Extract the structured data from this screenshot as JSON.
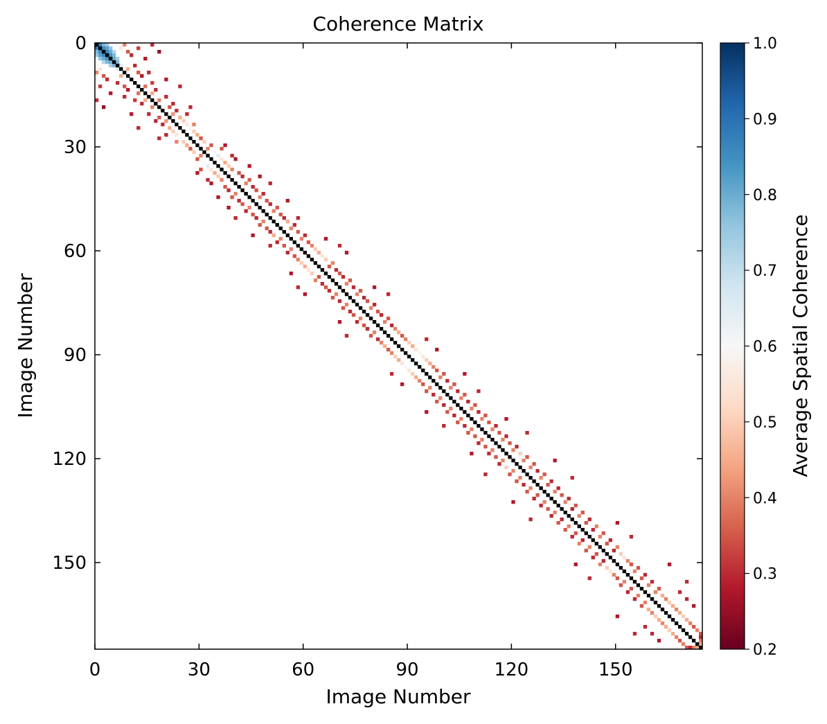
{
  "chart_data": {
    "type": "heatmap",
    "title": "Coherence Matrix",
    "xlabel": "Image Number",
    "ylabel": "Image Number",
    "n_images": 175,
    "xlim": [
      0,
      175
    ],
    "ylim": [
      175,
      0
    ],
    "x_ticks": [
      0,
      30,
      60,
      90,
      120,
      150
    ],
    "y_ticks": [
      0,
      30,
      60,
      90,
      120,
      150
    ],
    "colorbar": {
      "label": "Average Spatial Coherence",
      "range": [
        0.2,
        1.0
      ],
      "ticks": [
        0.2,
        0.3,
        0.4,
        0.5,
        0.6,
        0.7,
        0.8,
        0.9,
        1.0
      ],
      "tick_labels": [
        "0.2",
        "0.3",
        "0.4",
        "0.5",
        "0.6",
        "0.7",
        "0.8",
        "0.9",
        "1.0"
      ],
      "colormap": "RdBu",
      "low_color": "#67001f",
      "high_color": "#053061"
    },
    "diagonal": {
      "value": 1.0,
      "color": "#000000"
    },
    "background_color": "#ffffff",
    "symmetric": true,
    "cells": [
      [
        0,
        1,
        0.88
      ],
      [
        0,
        2,
        0.78
      ],
      [
        0,
        3,
        0.75
      ],
      [
        1,
        2,
        0.85
      ],
      [
        1,
        3,
        0.82
      ],
      [
        1,
        4,
        0.76
      ],
      [
        2,
        3,
        0.86
      ],
      [
        2,
        4,
        0.8
      ],
      [
        2,
        5,
        0.72
      ],
      [
        3,
        4,
        0.84
      ],
      [
        3,
        5,
        0.78
      ],
      [
        4,
        5,
        0.8
      ],
      [
        4,
        6,
        0.74
      ],
      [
        5,
        6,
        0.78
      ],
      [
        6,
        7,
        0.66
      ],
      [
        0,
        6,
        0.6
      ],
      [
        1,
        7,
        0.55
      ],
      [
        0,
        8,
        0.4
      ],
      [
        2,
        9,
        0.35
      ],
      [
        3,
        10,
        0.3
      ],
      [
        1,
        12,
        0.32
      ],
      [
        4,
        14,
        0.28
      ],
      [
        0,
        16,
        0.3
      ],
      [
        2,
        18,
        0.25
      ],
      [
        7,
        9,
        0.45
      ],
      [
        6,
        11,
        0.3
      ],
      [
        8,
        12,
        0.35
      ],
      [
        8,
        15,
        0.3
      ],
      [
        9,
        13,
        0.28
      ],
      [
        11,
        16,
        0.32
      ],
      [
        12,
        14,
        0.38
      ],
      [
        13,
        17,
        0.3
      ],
      [
        14,
        16,
        0.45
      ],
      [
        15,
        20,
        0.3
      ],
      [
        16,
        18,
        0.4
      ],
      [
        17,
        22,
        0.3
      ],
      [
        18,
        21,
        0.35
      ],
      [
        19,
        23,
        0.3
      ],
      [
        10,
        20,
        0.28
      ],
      [
        12,
        24,
        0.3
      ],
      [
        20,
        22,
        0.42
      ],
      [
        21,
        24,
        0.45
      ],
      [
        22,
        25,
        0.5
      ],
      [
        23,
        26,
        0.55
      ],
      [
        24,
        27,
        0.6
      ],
      [
        25,
        28,
        0.5
      ],
      [
        23,
        28,
        0.4
      ],
      [
        20,
        26,
        0.3
      ],
      [
        18,
        27,
        0.3
      ],
      [
        26,
        29,
        0.45
      ],
      [
        27,
        30,
        0.35
      ],
      [
        28,
        31,
        0.5
      ],
      [
        29,
        33,
        0.35
      ],
      [
        30,
        32,
        0.4
      ],
      [
        31,
        34,
        0.6
      ],
      [
        32,
        35,
        0.65
      ],
      [
        33,
        36,
        0.55
      ],
      [
        34,
        37,
        0.45
      ],
      [
        35,
        38,
        0.5
      ],
      [
        30,
        36,
        0.35
      ],
      [
        29,
        37,
        0.28
      ],
      [
        32,
        39,
        0.3
      ],
      [
        33,
        40,
        0.28
      ],
      [
        36,
        39,
        0.4
      ],
      [
        37,
        41,
        0.35
      ],
      [
        38,
        42,
        0.3
      ],
      [
        39,
        44,
        0.35
      ],
      [
        40,
        43,
        0.4
      ],
      [
        41,
        45,
        0.3
      ],
      [
        42,
        46,
        0.35
      ],
      [
        43,
        48,
        0.3
      ],
      [
        44,
        47,
        0.4
      ],
      [
        45,
        49,
        0.35
      ],
      [
        46,
        50,
        0.3
      ],
      [
        38,
        47,
        0.28
      ],
      [
        40,
        50,
        0.3
      ],
      [
        35,
        44,
        0.28
      ],
      [
        47,
        52,
        0.35
      ],
      [
        48,
        51,
        0.4
      ],
      [
        49,
        53,
        0.35
      ],
      [
        50,
        54,
        0.3
      ],
      [
        51,
        55,
        0.45
      ],
      [
        52,
        57,
        0.3
      ],
      [
        53,
        56,
        0.4
      ],
      [
        54,
        58,
        0.35
      ],
      [
        55,
        60,
        0.3
      ],
      [
        56,
        59,
        0.4
      ],
      [
        45,
        55,
        0.28
      ],
      [
        50,
        58,
        0.3
      ],
      [
        57,
        61,
        0.35
      ],
      [
        58,
        62,
        0.4
      ],
      [
        59,
        63,
        0.5
      ],
      [
        60,
        64,
        0.45
      ],
      [
        61,
        65,
        0.55
      ],
      [
        62,
        66,
        0.5
      ],
      [
        63,
        68,
        0.4
      ],
      [
        64,
        67,
        0.35
      ],
      [
        65,
        69,
        0.3
      ],
      [
        66,
        70,
        0.35
      ],
      [
        67,
        71,
        0.3
      ],
      [
        56,
        66,
        0.28
      ],
      [
        58,
        70,
        0.3
      ],
      [
        60,
        72,
        0.28
      ],
      [
        68,
        73,
        0.35
      ],
      [
        69,
        72,
        0.4
      ],
      [
        70,
        74,
        0.3
      ],
      [
        71,
        76,
        0.35
      ],
      [
        72,
        75,
        0.4
      ],
      [
        73,
        77,
        0.3
      ],
      [
        74,
        78,
        0.35
      ],
      [
        75,
        80,
        0.3
      ],
      [
        76,
        79,
        0.4
      ],
      [
        77,
        81,
        0.35
      ],
      [
        78,
        82,
        0.3
      ],
      [
        79,
        84,
        0.35
      ],
      [
        80,
        83,
        0.4
      ],
      [
        81,
        85,
        0.3
      ],
      [
        70,
        80,
        0.28
      ],
      [
        72,
        84,
        0.3
      ],
      [
        82,
        86,
        0.4
      ],
      [
        83,
        87,
        0.45
      ],
      [
        84,
        88,
        0.35
      ],
      [
        85,
        89,
        0.4
      ],
      [
        86,
        90,
        0.5
      ],
      [
        87,
        91,
        0.45
      ],
      [
        88,
        92,
        0.55
      ],
      [
        89,
        93,
        0.6
      ],
      [
        90,
        94,
        0.55
      ],
      [
        91,
        95,
        0.5
      ],
      [
        92,
        96,
        0.45
      ],
      [
        93,
        97,
        0.4
      ],
      [
        94,
        98,
        0.35
      ],
      [
        85,
        95,
        0.3
      ],
      [
        88,
        98,
        0.28
      ],
      [
        95,
        100,
        0.35
      ],
      [
        96,
        99,
        0.4
      ],
      [
        97,
        101,
        0.3
      ],
      [
        98,
        103,
        0.35
      ],
      [
        99,
        102,
        0.4
      ],
      [
        100,
        104,
        0.3
      ],
      [
        101,
        106,
        0.35
      ],
      [
        102,
        105,
        0.4
      ],
      [
        103,
        107,
        0.3
      ],
      [
        104,
        109,
        0.35
      ],
      [
        105,
        108,
        0.4
      ],
      [
        106,
        110,
        0.3
      ],
      [
        95,
        106,
        0.28
      ],
      [
        100,
        110,
        0.3
      ],
      [
        107,
        112,
        0.35
      ],
      [
        108,
        111,
        0.4
      ],
      [
        109,
        113,
        0.35
      ],
      [
        110,
        115,
        0.3
      ],
      [
        111,
        114,
        0.4
      ],
      [
        112,
        116,
        0.35
      ],
      [
        113,
        118,
        0.3
      ],
      [
        114,
        117,
        0.4
      ],
      [
        115,
        119,
        0.35
      ],
      [
        116,
        121,
        0.3
      ],
      [
        117,
        120,
        0.4
      ],
      [
        118,
        122,
        0.5
      ],
      [
        119,
        124,
        0.35
      ],
      [
        120,
        123,
        0.4
      ],
      [
        108,
        118,
        0.28
      ],
      [
        112,
        124,
        0.3
      ],
      [
        121,
        126,
        0.35
      ],
      [
        122,
        125,
        0.4
      ],
      [
        123,
        127,
        0.3
      ],
      [
        124,
        129,
        0.35
      ],
      [
        125,
        128,
        0.4
      ],
      [
        126,
        131,
        0.3
      ],
      [
        127,
        130,
        0.35
      ],
      [
        128,
        133,
        0.3
      ],
      [
        129,
        132,
        0.4
      ],
      [
        130,
        134,
        0.35
      ],
      [
        131,
        136,
        0.3
      ],
      [
        132,
        135,
        0.4
      ],
      [
        133,
        138,
        0.35
      ],
      [
        134,
        137,
        0.3
      ],
      [
        120,
        132,
        0.28
      ],
      [
        125,
        137,
        0.3
      ],
      [
        135,
        140,
        0.35
      ],
      [
        136,
        139,
        0.4
      ],
      [
        137,
        142,
        0.3
      ],
      [
        138,
        141,
        0.35
      ],
      [
        139,
        144,
        0.4
      ],
      [
        140,
        143,
        0.3
      ],
      [
        141,
        146,
        0.35
      ],
      [
        142,
        145,
        0.4
      ],
      [
        143,
        148,
        0.3
      ],
      [
        144,
        147,
        0.35
      ],
      [
        145,
        150,
        0.4
      ],
      [
        146,
        149,
        0.3
      ],
      [
        147,
        151,
        0.5
      ],
      [
        148,
        152,
        0.55
      ],
      [
        149,
        153,
        0.4
      ],
      [
        150,
        154,
        0.35
      ],
      [
        138,
        150,
        0.28
      ],
      [
        142,
        154,
        0.3
      ],
      [
        151,
        156,
        0.35
      ],
      [
        152,
        155,
        0.4
      ],
      [
        153,
        158,
        0.3
      ],
      [
        154,
        157,
        0.35
      ],
      [
        155,
        160,
        0.3
      ],
      [
        156,
        159,
        0.4
      ],
      [
        157,
        162,
        0.35
      ],
      [
        158,
        161,
        0.4
      ],
      [
        159,
        163,
        0.45
      ],
      [
        160,
        164,
        0.4
      ],
      [
        161,
        165,
        0.5
      ],
      [
        162,
        166,
        0.45
      ],
      [
        163,
        167,
        0.4
      ],
      [
        164,
        168,
        0.45
      ],
      [
        165,
        169,
        0.5
      ],
      [
        166,
        170,
        0.45
      ],
      [
        167,
        171,
        0.4
      ],
      [
        168,
        172,
        0.35
      ],
      [
        169,
        173,
        0.4
      ],
      [
        170,
        174,
        0.35
      ],
      [
        160,
        170,
        0.3
      ],
      [
        162,
        172,
        0.28
      ],
      [
        158,
        168,
        0.3
      ],
      [
        150,
        165,
        0.28
      ],
      [
        155,
        170,
        0.3
      ],
      [
        172,
        174,
        0.4
      ],
      [
        171,
        174,
        0.3
      ],
      [
        173,
        174,
        0.45
      ]
    ]
  }
}
